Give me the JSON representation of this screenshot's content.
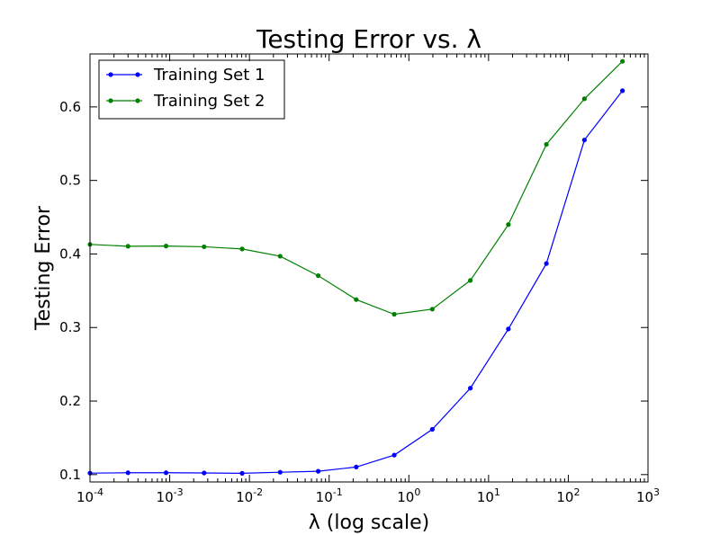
{
  "chart_data": {
    "type": "line",
    "title": "Testing Error vs. λ",
    "xlabel": "λ (log scale)",
    "ylabel": "Testing Error",
    "xscale": "log",
    "xlim": [
      0.0001,
      1000
    ],
    "ylim": [
      0.09,
      0.672
    ],
    "grid": false,
    "legend_position": "top-left",
    "x_ticks": [
      {
        "value": 0.0001,
        "base": "10",
        "exp": "-4"
      },
      {
        "value": 0.001,
        "base": "10",
        "exp": "-3"
      },
      {
        "value": 0.01,
        "base": "10",
        "exp": "-2"
      },
      {
        "value": 0.1,
        "base": "10",
        "exp": "-1"
      },
      {
        "value": 1,
        "base": "10",
        "exp": "0"
      },
      {
        "value": 10,
        "base": "10",
        "exp": "1"
      },
      {
        "value": 100,
        "base": "10",
        "exp": "2"
      },
      {
        "value": 1000,
        "base": "10",
        "exp": "3"
      }
    ],
    "y_ticks": [
      {
        "value": 0.1,
        "label": "0.1"
      },
      {
        "value": 0.2,
        "label": "0.2"
      },
      {
        "value": 0.3,
        "label": "0.3"
      },
      {
        "value": 0.4,
        "label": "0.4"
      },
      {
        "value": 0.5,
        "label": "0.5"
      },
      {
        "value": 0.6,
        "label": "0.6"
      }
    ],
    "x": [
      0.0001,
      0.0003,
      0.0009,
      0.0027,
      0.0081,
      0.0243,
      0.0729,
      0.2187,
      0.6561,
      1.9683,
      5.9049,
      17.7147,
      53.1441,
      159.4323,
      478.2969
    ],
    "series": [
      {
        "name": "Training Set 1",
        "color": "#0000ff",
        "values": [
          0.102,
          0.1025,
          0.1025,
          0.1022,
          0.1018,
          0.1032,
          0.1045,
          0.1103,
          0.1265,
          0.1615,
          0.2175,
          0.298,
          0.387,
          0.555,
          0.622
        ]
      },
      {
        "name": "Training Set 2",
        "color": "#008000",
        "values": [
          0.413,
          0.4105,
          0.4108,
          0.4098,
          0.4068,
          0.397,
          0.3705,
          0.338,
          0.318,
          0.325,
          0.364,
          0.44,
          0.549,
          0.611,
          0.662
        ]
      }
    ]
  }
}
